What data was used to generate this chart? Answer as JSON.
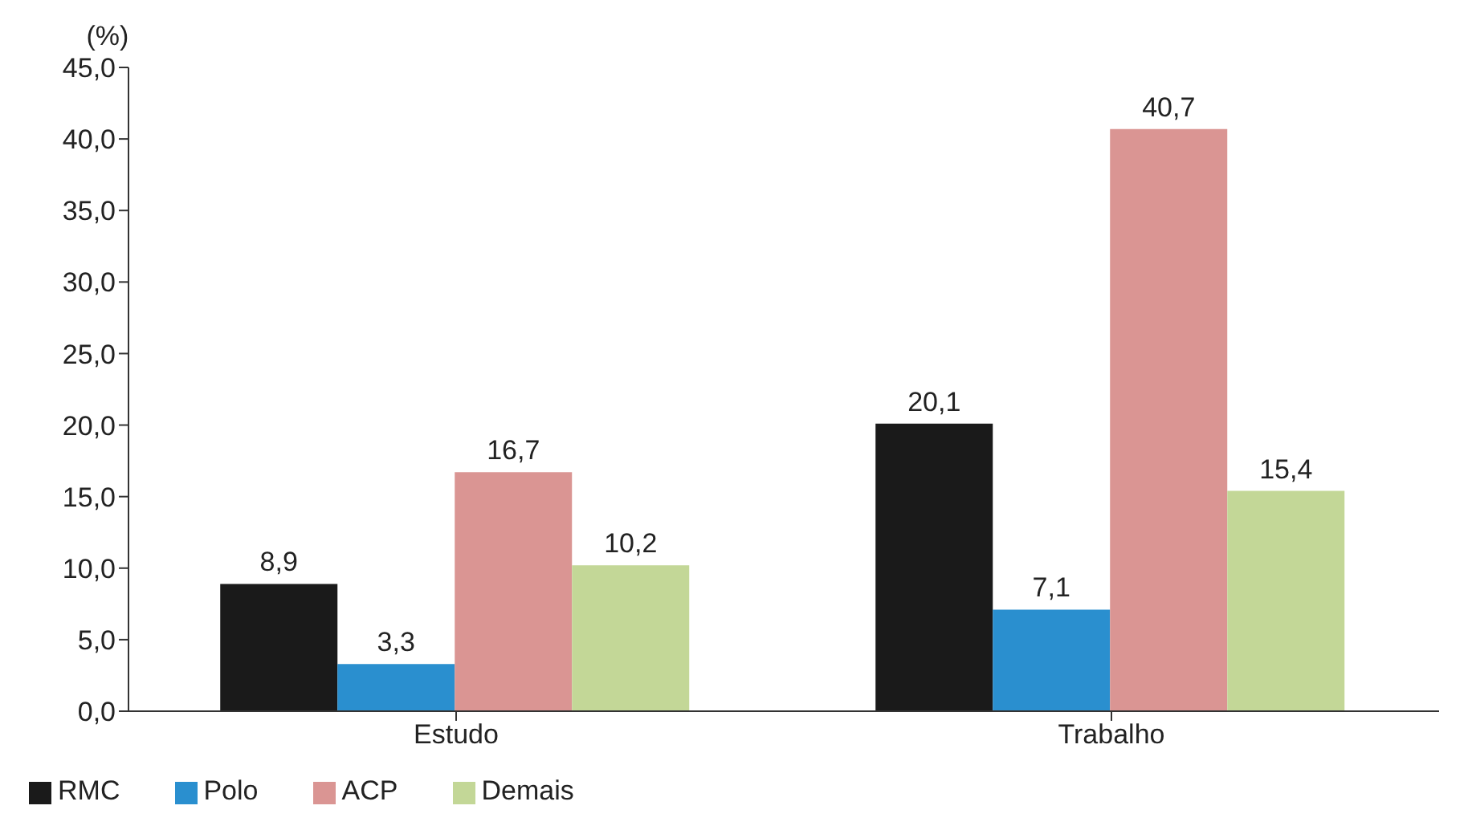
{
  "chart_data": {
    "type": "bar",
    "ylabel": "(%)",
    "categories": [
      "Estudo",
      "Trabalho"
    ],
    "series": [
      {
        "name": "RMC",
        "color": "#1a1a1a",
        "values": [
          8.9,
          20.1
        ],
        "value_labels": [
          "8,9",
          "20,1"
        ]
      },
      {
        "name": "Polo",
        "color": "#2a8fcf",
        "values": [
          3.3,
          7.1
        ],
        "value_labels": [
          "3,3",
          "7,1"
        ]
      },
      {
        "name": "ACP",
        "color": "#da9593",
        "values": [
          16.7,
          40.7
        ],
        "value_labels": [
          "16,7",
          "40,7"
        ]
      },
      {
        "name": "Demais",
        "color": "#c3d797",
        "values": [
          10.2,
          15.4
        ],
        "value_labels": [
          "10,2",
          "15,4"
        ]
      }
    ],
    "ylim": [
      0,
      45
    ],
    "yticks": [
      {
        "value": 0,
        "label": "0,0"
      },
      {
        "value": 5,
        "label": "5,0"
      },
      {
        "value": 10,
        "label": "10,0"
      },
      {
        "value": 15,
        "label": "15,0"
      },
      {
        "value": 20,
        "label": "20,0"
      },
      {
        "value": 25,
        "label": "25,0"
      },
      {
        "value": 30,
        "label": "30,0"
      },
      {
        "value": 35,
        "label": "35,0"
      },
      {
        "value": 40,
        "label": "40,0"
      },
      {
        "value": 45,
        "label": "45,0"
      }
    ],
    "grid": false,
    "legend": "bottom left"
  }
}
